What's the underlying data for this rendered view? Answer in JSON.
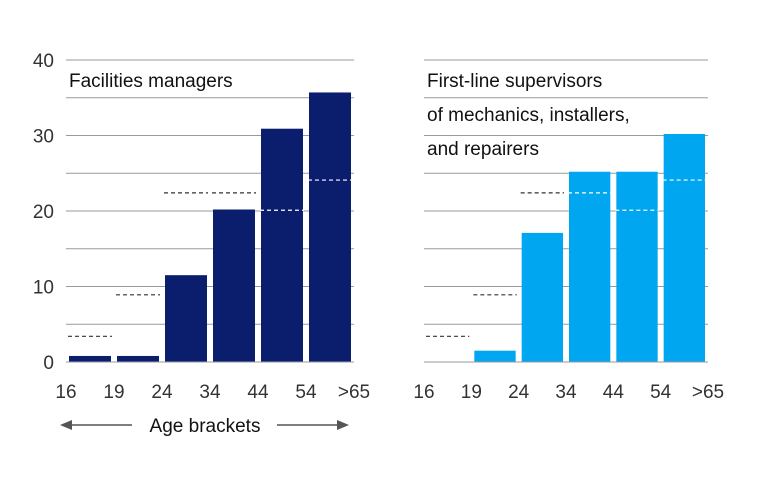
{
  "colors": {
    "panel_left": "#0b1e6e",
    "panel_right": "#00a7f0",
    "gridline": "#9a9a9a",
    "reference": "#333333",
    "arrow": "#555555"
  },
  "axis_title": "Age brackets",
  "chart_data": [
    {
      "type": "bar",
      "title_lines": [
        "Facilities managers"
      ],
      "x_tick_labels": [
        "16",
        "19",
        "24",
        "34",
        "44",
        "54",
        ">65"
      ],
      "categories": [
        "16–19",
        "19–24",
        "24–34",
        "34–44",
        "44–54",
        "54–>65"
      ],
      "values": [
        0.8,
        0.8,
        11.5,
        20.2,
        30.9,
        35.7
      ],
      "reference_values": [
        3.4,
        8.9,
        22.4,
        22.4,
        20.1,
        24.1
      ],
      "ylim": [
        0,
        40
      ],
      "y_tick_labels": [
        "0",
        "10",
        "20",
        "30",
        "40"
      ],
      "y_ticks": [
        0,
        10,
        20,
        30,
        40
      ],
      "gridlines_every": 5,
      "color": "#0b1e6e"
    },
    {
      "type": "bar",
      "title_lines": [
        "First-line supervisors",
        "of mechanics, installers,",
        "and repairers"
      ],
      "x_tick_labels": [
        "16",
        "19",
        "24",
        "34",
        "44",
        "54",
        ">65"
      ],
      "categories": [
        "16–19",
        "19–24",
        "24–34",
        "34–44",
        "44–54",
        "54–>65"
      ],
      "values": [
        0,
        1.5,
        17.1,
        25.2,
        25.2,
        30.2
      ],
      "reference_values": [
        3.4,
        8.9,
        22.4,
        22.4,
        20.1,
        24.1
      ],
      "ylim": [
        0,
        40
      ],
      "y_ticks": [
        0,
        10,
        20,
        30,
        40
      ],
      "gridlines_every": 5,
      "color": "#00a7f0"
    }
  ]
}
